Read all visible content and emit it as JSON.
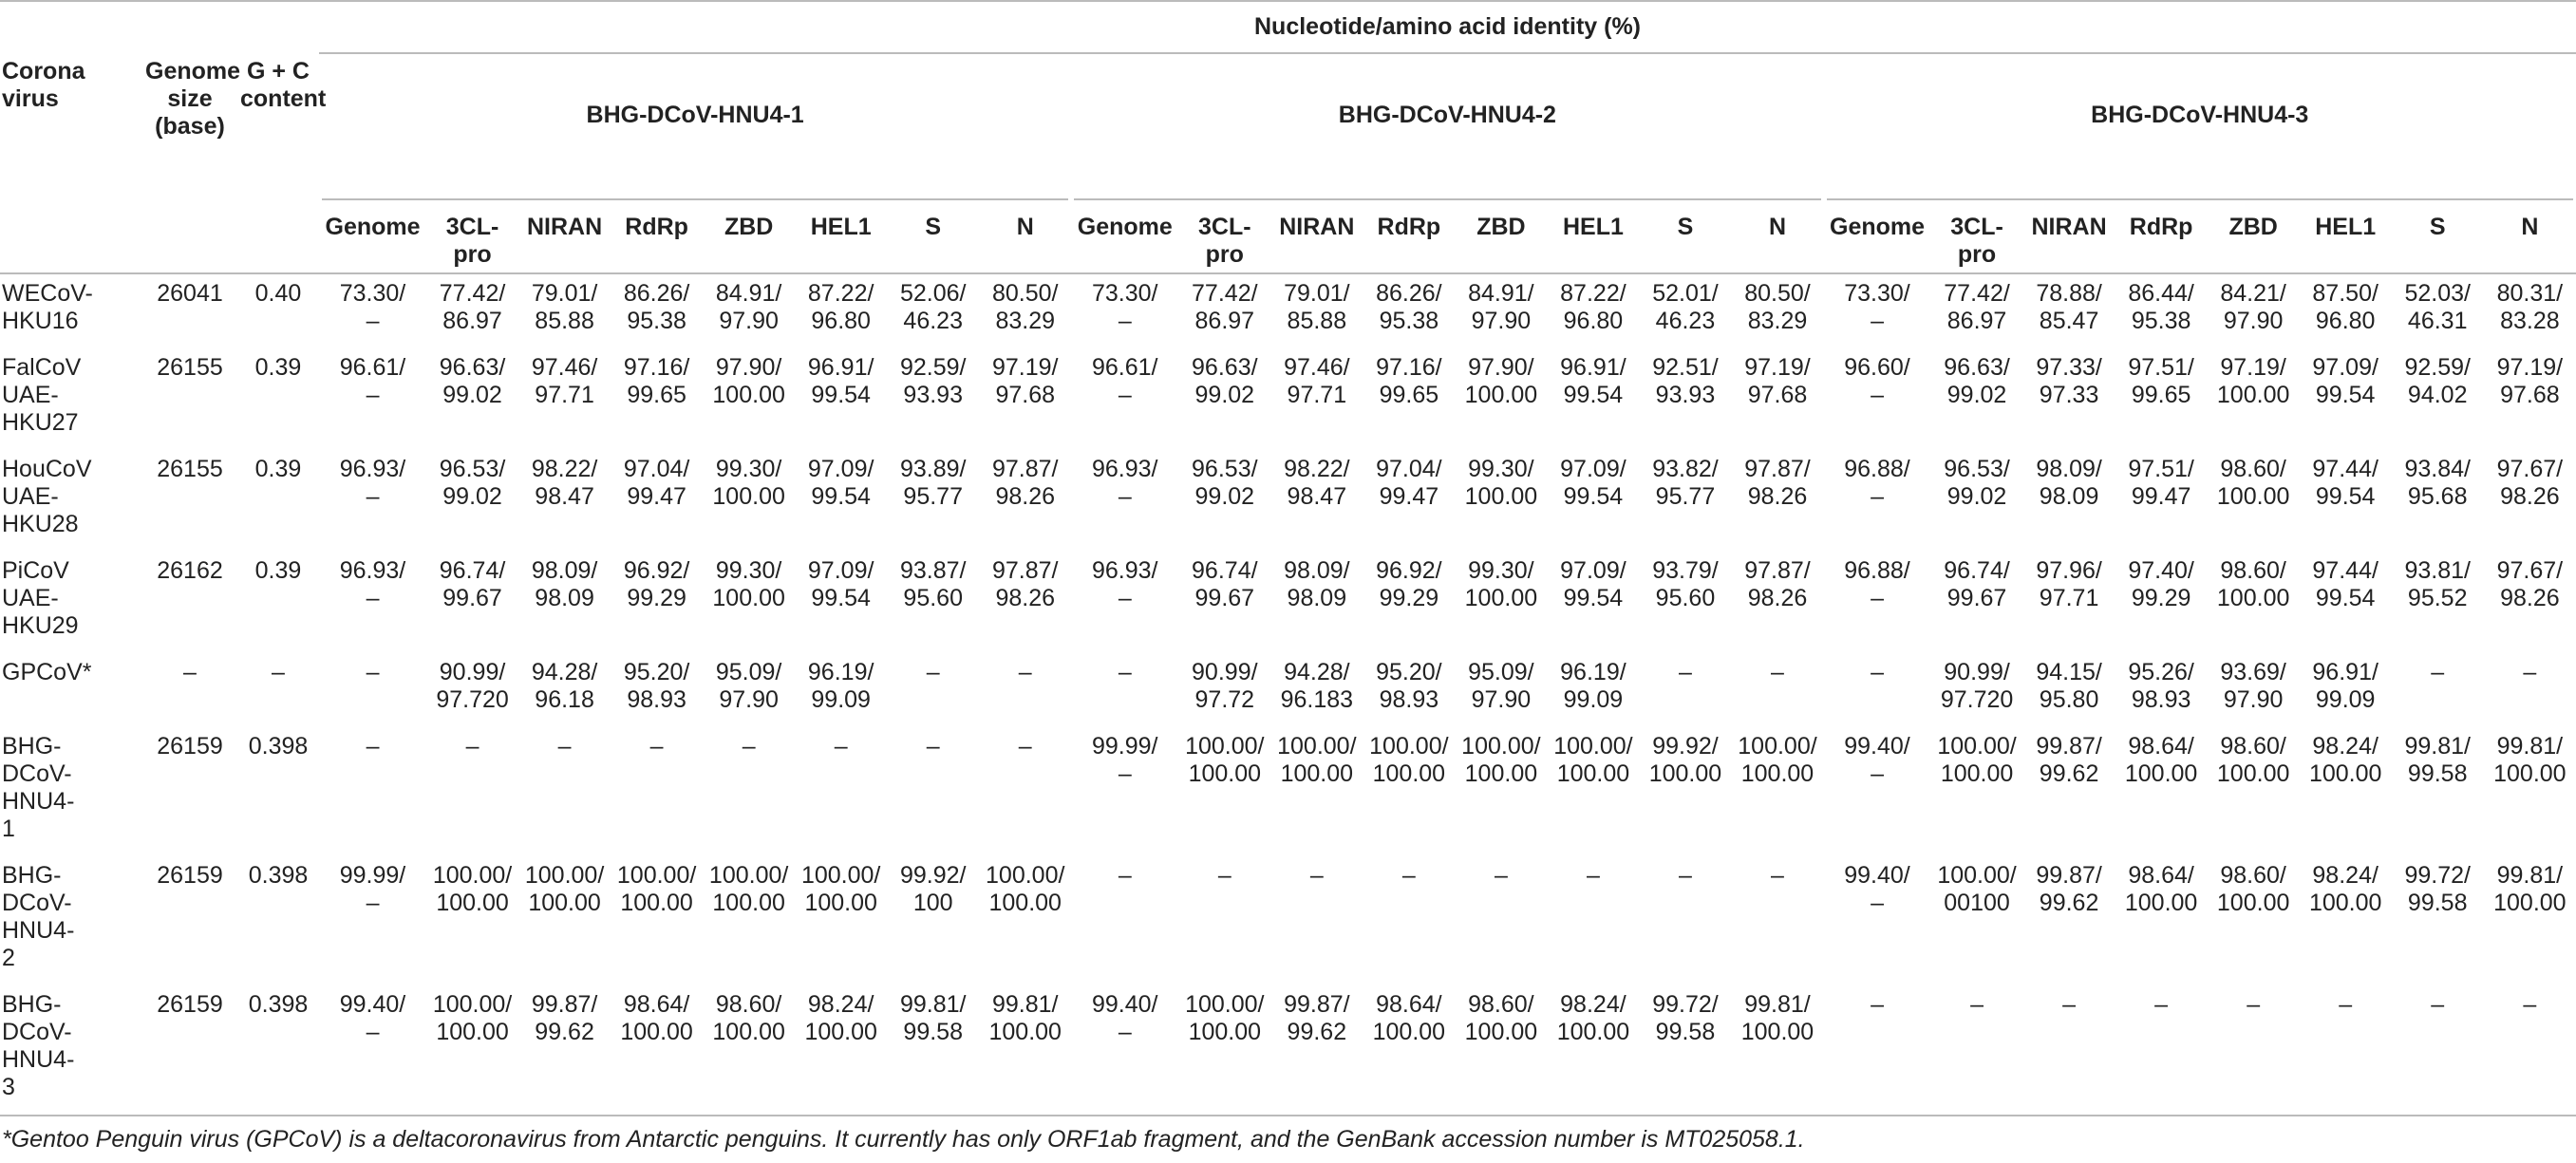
{
  "table": {
    "title": "Nucleotide/amino acid identity (%)",
    "columns": [
      "Corona\nvirus",
      "Genome\nsize\n(base)",
      "G + C\ncontent"
    ],
    "groups": [
      "BHG-DCoV-HNU4-1",
      "BHG-DCoV-HNU4-2",
      "BHG-DCoV-HNU4-3"
    ],
    "subcolumns": [
      "Genome",
      "3CL-\npro",
      "NIRAN",
      "RdRp",
      "ZBD",
      "HEL1",
      "S",
      "N"
    ],
    "rows": [
      [
        "WECoV-\nHKU16",
        "26041",
        "0.40",
        "73.30/\n–",
        "77.42/\n86.97",
        "79.01/\n85.88",
        "86.26/\n95.38",
        "84.91/\n97.90",
        "87.22/\n96.80",
        "52.06/\n46.23",
        "80.50/\n83.29",
        "73.30/\n–",
        "77.42/\n86.97",
        "79.01/\n85.88",
        "86.26/\n95.38",
        "84.91/\n97.90",
        "87.22/\n96.80",
        "52.01/\n46.23",
        "80.50/\n83.29",
        "73.30/\n–",
        "77.42/\n86.97",
        "78.88/\n85.47",
        "86.44/\n95.38",
        "84.21/\n97.90",
        "87.50/\n96.80",
        "52.03/\n46.31",
        "80.31/\n83.28"
      ],
      [
        "FalCoV\nUAE-\nHKU27",
        "26155",
        "0.39",
        "96.61/\n–",
        "96.63/\n99.02",
        "97.46/\n97.71",
        "97.16/\n99.65",
        "97.90/\n100.00",
        "96.91/\n99.54",
        "92.59/\n93.93",
        "97.19/\n97.68",
        "96.61/\n–",
        "96.63/\n99.02",
        "97.46/\n97.71",
        "97.16/\n99.65",
        "97.90/\n100.00",
        "96.91/\n99.54",
        "92.51/\n93.93",
        "97.19/\n97.68",
        "96.60/\n–",
        "96.63/\n99.02",
        "97.33/\n97.33",
        "97.51/\n99.65",
        "97.19/\n100.00",
        "97.09/\n99.54",
        "92.59/\n94.02",
        "97.19/\n97.68"
      ],
      [
        "HouCoV\nUAE-\nHKU28",
        "26155",
        "0.39",
        "96.93/\n–",
        "96.53/\n99.02",
        "98.22/\n98.47",
        "97.04/\n99.47",
        "99.30/\n100.00",
        "97.09/\n99.54",
        "93.89/\n95.77",
        "97.87/\n98.26",
        "96.93/\n–",
        "96.53/\n99.02",
        "98.22/\n98.47",
        "97.04/\n99.47",
        "99.30/\n100.00",
        "97.09/\n99.54",
        "93.82/\n95.77",
        "97.87/\n98.26",
        "96.88/\n–",
        "96.53/\n99.02",
        "98.09/\n98.09",
        "97.51/\n99.47",
        "98.60/\n100.00",
        "97.44/\n99.54",
        "93.84/\n95.68",
        "97.67/\n98.26"
      ],
      [
        "PiCoV\nUAE-\nHKU29",
        "26162",
        "0.39",
        "96.93/\n–",
        "96.74/\n99.67",
        "98.09/\n98.09",
        "96.92/\n99.29",
        "99.30/\n100.00",
        "97.09/\n99.54",
        "93.87/\n95.60",
        "97.87/\n98.26",
        "96.93/\n–",
        "96.74/\n99.67",
        "98.09/\n98.09",
        "96.92/\n99.29",
        "99.30/\n100.00",
        "97.09/\n99.54",
        "93.79/\n95.60",
        "97.87/\n98.26",
        "96.88/\n–",
        "96.74/\n99.67",
        "97.96/\n97.71",
        "97.40/\n99.29",
        "98.60/\n100.00",
        "97.44/\n99.54",
        "93.81/\n95.52",
        "97.67/\n98.26"
      ],
      [
        "GPCoV*",
        "–",
        "–",
        "–",
        "90.99/\n97.720",
        "94.28/\n96.18",
        "95.20/\n98.93",
        "95.09/\n97.90",
        "96.19/\n99.09",
        "–",
        "–",
        "–",
        "90.99/\n97.72",
        "94.28/\n96.183",
        "95.20/\n98.93",
        "95.09/\n97.90",
        "96.19/\n99.09",
        "–",
        "–",
        "–",
        "90.99/\n97.720",
        "94.15/\n95.80",
        "95.26/\n98.93",
        "93.69/\n97.90",
        "96.91/\n99.09",
        "–",
        "–"
      ],
      [
        "BHG-\nDCoV-\nHNU4-\n1",
        "26159",
        "0.398",
        "–",
        "–",
        "–",
        "–",
        "–",
        "–",
        "–",
        "–",
        "99.99/\n–",
        "100.00/\n100.00",
        "100.00/\n100.00",
        "100.00/\n100.00",
        "100.00/\n100.00",
        "100.00/\n100.00",
        "99.92/\n100.00",
        "100.00/\n100.00",
        "99.40/\n–",
        "100.00/\n100.00",
        "99.87/\n99.62",
        "98.64/\n100.00",
        "98.60/\n100.00",
        "98.24/\n100.00",
        "99.81/\n99.58",
        "99.81/\n100.00"
      ],
      [
        "BHG-\nDCoV-\nHNU4-\n2",
        "26159",
        "0.398",
        "99.99/\n–",
        "100.00/\n100.00",
        "100.00/\n100.00",
        "100.00/\n100.00",
        "100.00/\n100.00",
        "100.00/\n100.00",
        "99.92/\n100",
        "100.00/\n100.00",
        "–",
        "–",
        "–",
        "–",
        "–",
        "–",
        "–",
        "–",
        "99.40/\n–",
        "100.00/\n00100",
        "99.87/\n99.62",
        "98.64/\n100.00",
        "98.60/\n100.00",
        "98.24/\n100.00",
        "99.72/\n99.58",
        "99.81/\n100.00"
      ],
      [
        "BHG-\nDCoV-\nHNU4-\n3",
        "26159",
        "0.398",
        "99.40/\n–",
        "100.00/\n100.00",
        "99.87/\n99.62",
        "98.64/\n100.00",
        "98.60/\n100.00",
        "98.24/\n100.00",
        "99.81/\n99.58",
        "99.81/\n100.00",
        "99.40/\n–",
        "100.00/\n100.00",
        "99.87/\n99.62",
        "98.64/\n100.00",
        "98.60/\n100.00",
        "98.24/\n100.00",
        "99.72/\n99.58",
        "99.81/\n100.00",
        "–",
        "–",
        "–",
        "–",
        "–",
        "–",
        "–",
        "–"
      ]
    ]
  },
  "footnote": "*Gentoo Penguin virus (GPCoV) is a deltacoronavirus from Antarctic penguins. It currently has only ORF1ab fragment, and the GenBank accession number is MT025058.1."
}
